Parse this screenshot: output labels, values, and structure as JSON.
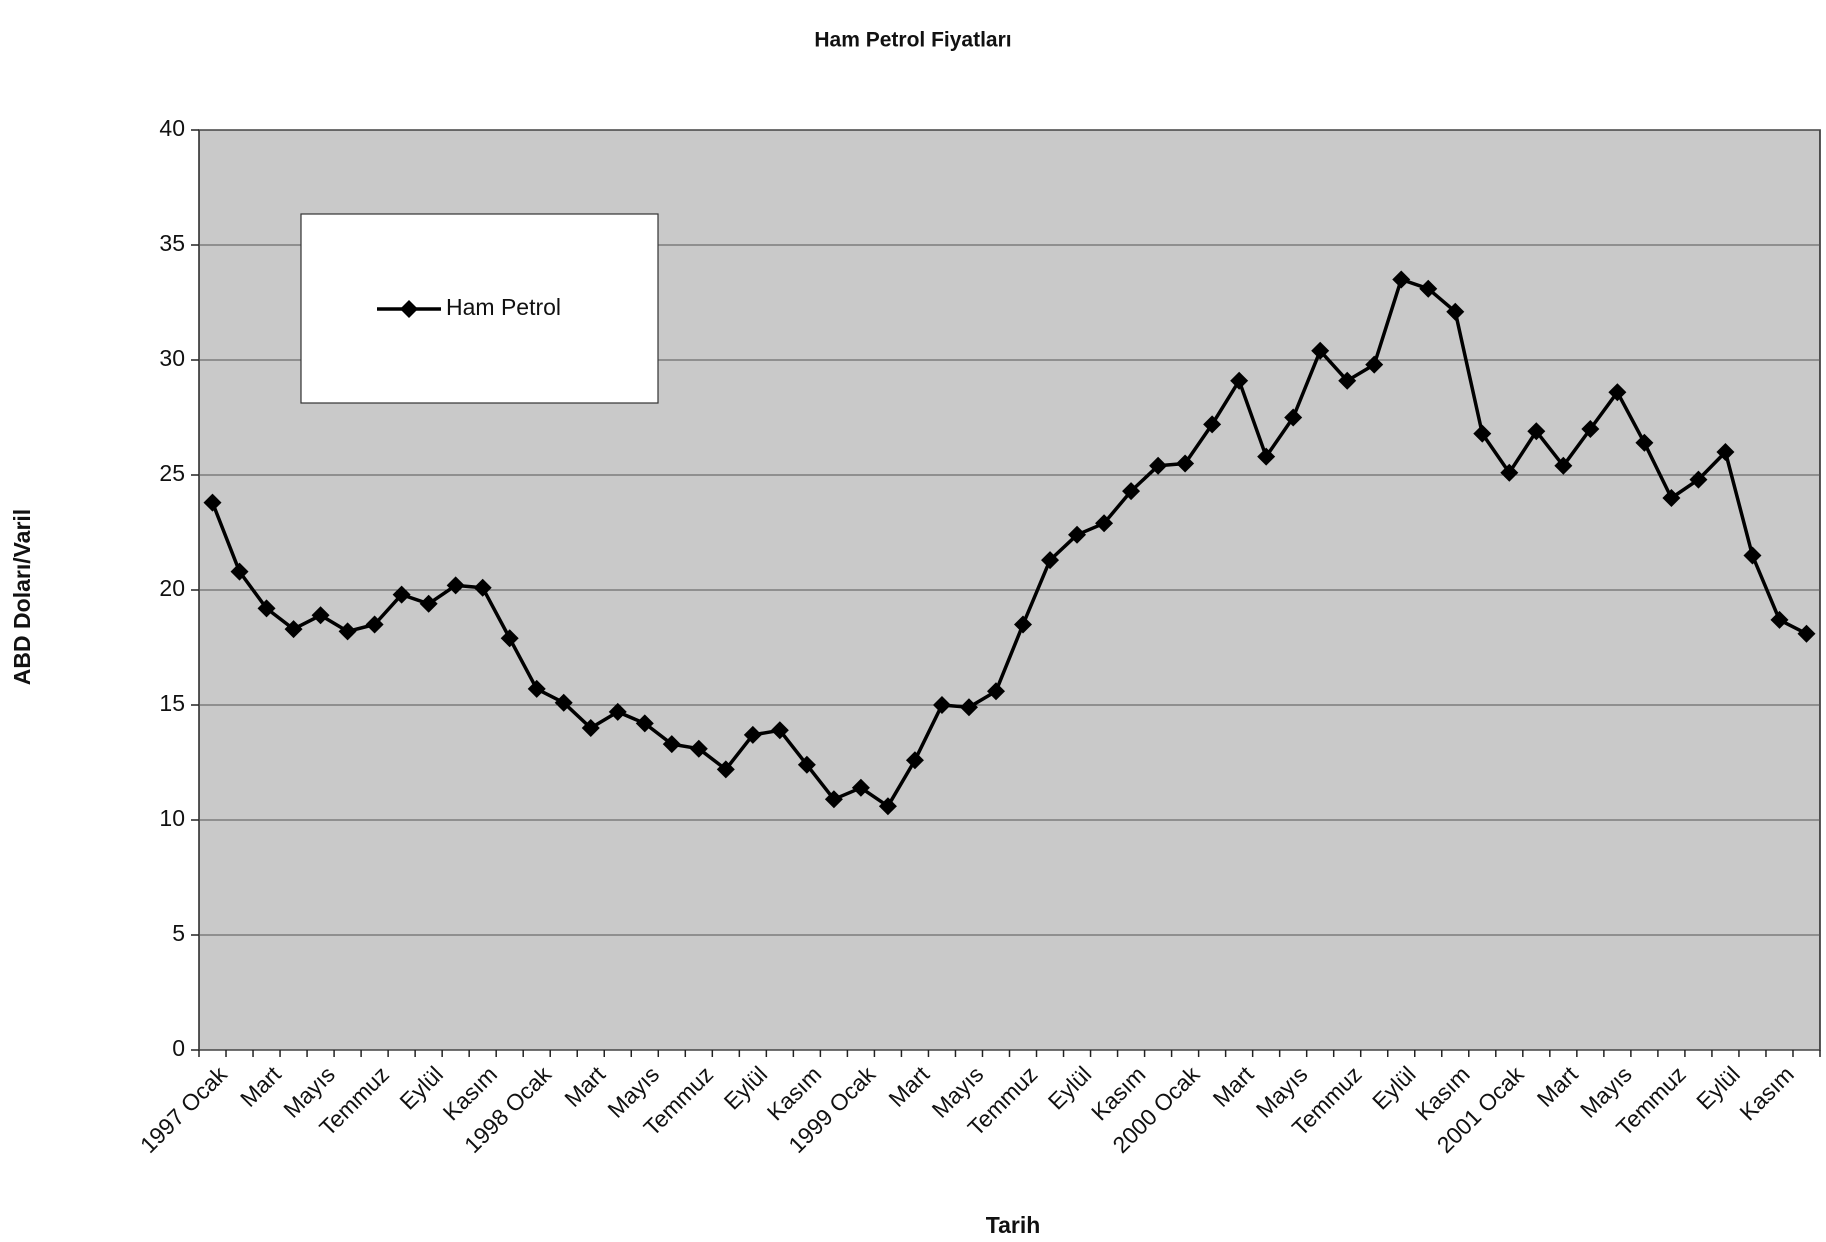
{
  "chart_data": {
    "type": "line",
    "title": "Ham Petrol Fiyatları",
    "x_label": "Tarih",
    "y_label": "ABD Doları/Varil",
    "categories": [
      "1997 Ocak",
      null,
      "Mart",
      null,
      "Mayıs",
      null,
      "Temmuz",
      null,
      "Eylül",
      null,
      "Kasım",
      null,
      "1998 Ocak",
      null,
      "Mart",
      null,
      "Mayıs",
      null,
      "Temmuz",
      null,
      "Eylül",
      null,
      "Kasım",
      null,
      "1999 Ocak",
      null,
      "Mart",
      null,
      "Mayıs",
      null,
      "Temmuz",
      null,
      "Eylül",
      null,
      "Kasım",
      null,
      "2000 Ocak",
      null,
      "Mart",
      null,
      "Mayıs",
      null,
      "Temmuz",
      null,
      "Eylül",
      null,
      "Kasım",
      null,
      "2001 Ocak",
      null,
      "Mart",
      null,
      "Mayıs",
      null,
      "Temmuz",
      null,
      "Eylül",
      null,
      "Kasım",
      null
    ],
    "series": [
      {
        "name": "Ham Petrol",
        "color": "#000000",
        "values": [
          23.8,
          20.8,
          19.2,
          18.3,
          18.9,
          18.2,
          18.5,
          19.8,
          19.4,
          20.2,
          20.1,
          17.9,
          15.7,
          15.1,
          14.0,
          14.7,
          14.2,
          13.3,
          13.1,
          12.2,
          13.7,
          13.9,
          12.4,
          10.9,
          11.4,
          10.6,
          12.6,
          15.0,
          14.9,
          15.6,
          18.5,
          21.3,
          22.4,
          22.9,
          24.3,
          25.4,
          25.5,
          27.2,
          29.1,
          25.8,
          27.5,
          30.4,
          29.1,
          29.8,
          33.5,
          33.1,
          32.1,
          26.8,
          25.1,
          26.9,
          25.4,
          27.0,
          28.6,
          26.4,
          24.0,
          24.8,
          26.0,
          21.5,
          18.7,
          18.1
        ]
      }
    ],
    "ylim": [
      0,
      40
    ],
    "yticks": [
      0,
      5,
      10,
      15,
      20,
      25,
      30,
      35,
      40
    ],
    "grid": true,
    "legend": "upper left"
  }
}
